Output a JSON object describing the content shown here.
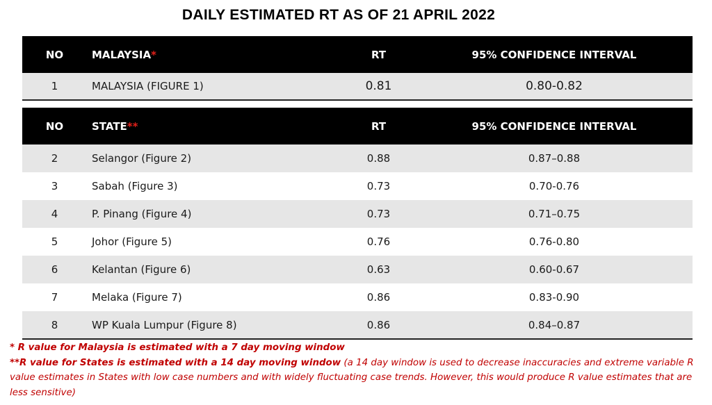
{
  "title": "DAILY ESTIMATED RT AS OF 21 APRIL 2022",
  "malaysia_table": {
    "headers": {
      "no": "NO",
      "name": "MALAYSIA",
      "name_marker": "*",
      "rt": "RT",
      "ci": "95% CONFIDENCE INTERVAL"
    },
    "rows": [
      {
        "no": "1",
        "name": "MALAYSIA (FIGURE 1)",
        "rt": "0.81",
        "ci": "0.80-0.82"
      }
    ]
  },
  "state_table": {
    "headers": {
      "no": "NO",
      "name": "STATE",
      "name_marker": "**",
      "rt": "RT",
      "ci": "95% CONFIDENCE INTERVAL"
    },
    "rows": [
      {
        "no": "2",
        "name": "Selangor (Figure 2)",
        "rt": "0.88",
        "ci": "0.87–0.88"
      },
      {
        "no": "3",
        "name": "Sabah (Figure 3)",
        "rt": "0.73",
        "ci": "0.70-0.76"
      },
      {
        "no": "4",
        "name": "P. Pinang (Figure 4)",
        "rt": "0.73",
        "ci": "0.71–0.75"
      },
      {
        "no": "5",
        "name": "Johor (Figure 5)",
        "rt": "0.76",
        "ci": "0.76-0.80"
      },
      {
        "no": "6",
        "name": "Kelantan (Figure 6)",
        "rt": "0.63",
        "ci": "0.60-0.67"
      },
      {
        "no": "7",
        "name": "Melaka (Figure 7)",
        "rt": "0.86",
        "ci": "0.83-0.90"
      },
      {
        "no": "8",
        "name": "WP Kuala Lumpur (Figure 8)",
        "rt": "0.86",
        "ci": "0.84–0.87"
      }
    ]
  },
  "notes": {
    "note1": "*  R value for Malaysia is estimated with a 7 day moving window",
    "note2_bold": "**R value for States is estimated with a 14 day moving window",
    "note2_rest": " (a 14 day window is used to decrease inaccuracies and extreme variable R value estimates in States with low case numbers and with widely fluctuating case trends. However, this would produce R value estimates that are less sensitive)"
  },
  "colors": {
    "header_bg": "#000000",
    "row_shade": "#e6e6e6",
    "note_red": "#c00000",
    "marker_red": "#e0201a"
  }
}
